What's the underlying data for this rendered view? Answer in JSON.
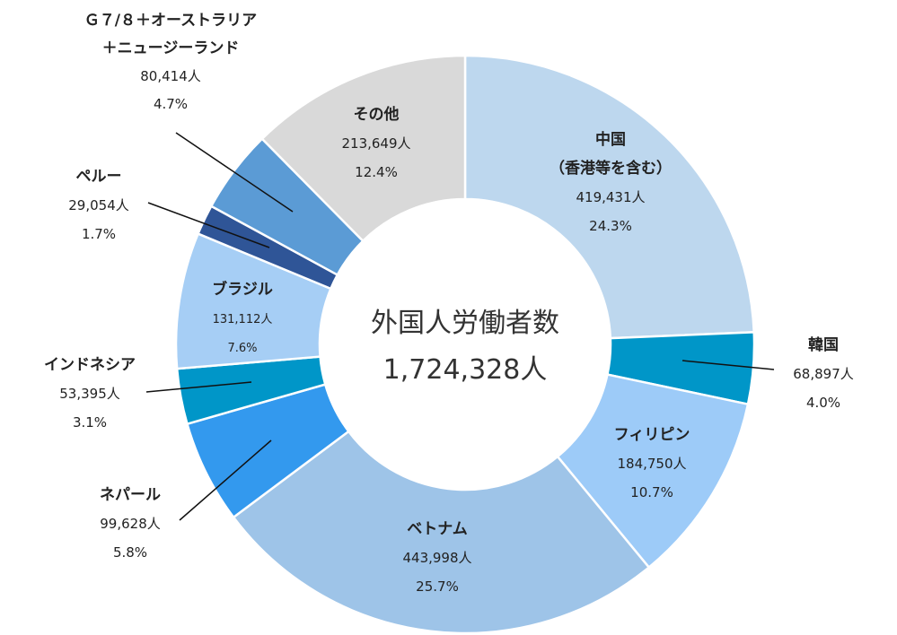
{
  "chart_data": {
    "type": "pie",
    "center_label": "外国人労働者数",
    "center_total": "1,724,328人",
    "start_angle_deg": 0,
    "direction": "clockwise",
    "slices": [
      {
        "name": "中国",
        "name2": "（香港等を含む）",
        "count": 419431,
        "count_label": "419,431人",
        "percent": 24.3,
        "percent_label": "24.3%",
        "color": "#bdd7ee"
      },
      {
        "name": "韓国",
        "count": 68897,
        "count_label": "68,897人",
        "percent": 4.0,
        "percent_label": "4.0%",
        "color": "#0096c8"
      },
      {
        "name": "フィリピン",
        "count": 184750,
        "count_label": "184,750人",
        "percent": 10.7,
        "percent_label": "10.7%",
        "color": "#9dcbf8"
      },
      {
        "name": "ベトナム",
        "count": 443998,
        "count_label": "443,998人",
        "percent": 25.7,
        "percent_label": "25.7%",
        "color": "#9ec4e8"
      },
      {
        "name": "ネパール",
        "count": 99628,
        "count_label": "99,628人",
        "percent": 5.8,
        "percent_label": "5.8%",
        "color": "#3399ee"
      },
      {
        "name": "インドネシア",
        "count": 53395,
        "count_label": "53,395人",
        "percent": 3.1,
        "percent_label": "3.1%",
        "color": "#0096c8"
      },
      {
        "name": "ブラジル",
        "count": 131112,
        "count_label": "131,112人",
        "percent": 7.6,
        "percent_label": "7.6%",
        "color": "#a6cef5"
      },
      {
        "name": "ペルー",
        "count": 29054,
        "count_label": "29,054人",
        "percent": 1.7,
        "percent_label": "1.7%",
        "color": "#2f5597"
      },
      {
        "name": "Ｇ７/８＋オーストラリア",
        "name2": "＋ニュージーランド",
        "count": 80414,
        "count_label": "80,414人",
        "percent": 4.7,
        "percent_label": "4.7%",
        "color": "#5b9bd5"
      },
      {
        "name": "その他",
        "count": 213649,
        "count_label": "213,649人",
        "percent": 12.4,
        "percent_label": "12.4%",
        "color": "#d9d9d9"
      }
    ]
  }
}
